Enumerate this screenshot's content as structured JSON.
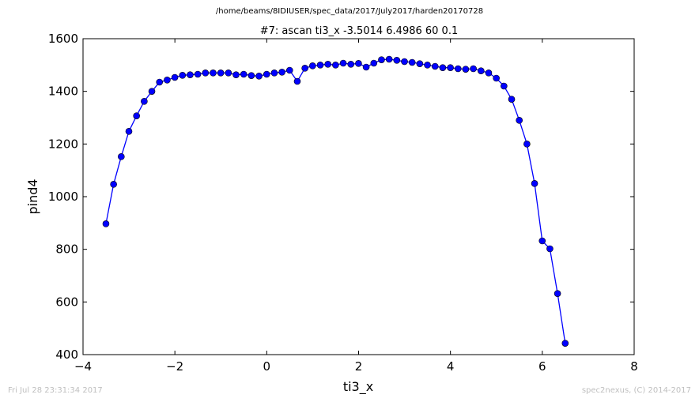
{
  "header": {
    "path": "/home/beams/8IDIUSER/spec_data/2017/July2017/harden20170728"
  },
  "footer": {
    "timestamp": "Fri Jul 28 23:31:34 2017",
    "credit": "spec2nexus, (C) 2014-2017"
  },
  "colors": {
    "series": "#0000ff",
    "footer_text": "#bfbfbf"
  },
  "chart_data": {
    "type": "line",
    "title": "#7: ascan  ti3_x -3.5014 6.4986  60 0.1",
    "xlabel": "ti3_x",
    "ylabel": "pind4",
    "xlim": [
      -4,
      8
    ],
    "ylim": [
      400,
      1600
    ],
    "xticks": [
      "−4",
      "−2",
      "0",
      "2",
      "4",
      "6",
      "8"
    ],
    "yticks": [
      "400",
      "600",
      "800",
      "1000",
      "1200",
      "1400",
      "1600"
    ],
    "grid": false,
    "marker": "circle",
    "series": [
      {
        "x": [
          -3.5014,
          -3.3347,
          -3.1681,
          -3.0014,
          -2.8347,
          -2.6681,
          -2.5014,
          -2.3347,
          -2.1681,
          -2.0014,
          -1.8347,
          -1.6681,
          -1.5014,
          -1.3347,
          -1.1681,
          -1.0014,
          -0.8347,
          -0.6681,
          -0.5014,
          -0.3347,
          -0.1681,
          -0.0014,
          0.1653,
          0.3319,
          0.4986,
          0.6653,
          0.8319,
          0.9986,
          1.1653,
          1.3319,
          1.4986,
          1.6653,
          1.8319,
          1.9986,
          2.1653,
          2.3319,
          2.4986,
          2.6653,
          2.8319,
          2.9986,
          3.1653,
          3.3319,
          3.4986,
          3.6653,
          3.8319,
          3.9986,
          4.1653,
          4.3319,
          4.4986,
          4.6653,
          4.8319,
          4.9986,
          5.1653,
          5.3319,
          5.4986,
          5.6653,
          5.8319,
          5.9986,
          6.1653,
          6.3319,
          6.4986
        ],
        "y": [
          897,
          1047,
          1152,
          1248,
          1307,
          1362,
          1400,
          1435,
          1443,
          1453,
          1461,
          1463,
          1465,
          1470,
          1470,
          1470,
          1470,
          1463,
          1465,
          1460,
          1458,
          1465,
          1470,
          1473,
          1480,
          1438,
          1488,
          1497,
          1500,
          1503,
          1500,
          1507,
          1503,
          1506,
          1492,
          1507,
          1520,
          1522,
          1518,
          1513,
          1510,
          1505,
          1500,
          1495,
          1490,
          1490,
          1486,
          1484,
          1486,
          1478,
          1470,
          1450,
          1420,
          1370,
          1290,
          1200,
          1050,
          832,
          802,
          632,
          443
        ]
      }
    ]
  }
}
